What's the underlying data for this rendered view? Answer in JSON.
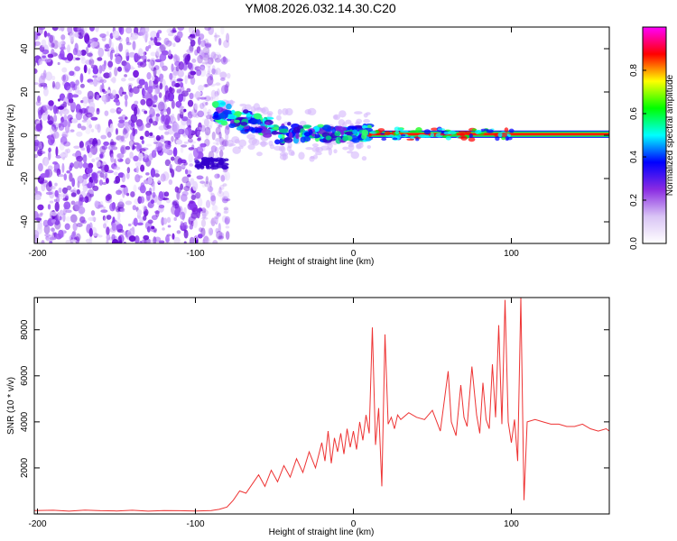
{
  "title": "YM08.2026.032.14.30.C20",
  "chart_data": [
    {
      "type": "heatmap",
      "name": "spectrogram",
      "xlabel": "Height of straight line (km)",
      "ylabel": "Frequency (Hz)",
      "xlim": [
        -202,
        162
      ],
      "ylim": [
        -50,
        50
      ],
      "x_ticks": [
        -200,
        -100,
        0,
        100
      ],
      "y_ticks": [
        -40,
        -20,
        0,
        20,
        40
      ],
      "noise_region_x": [
        -202,
        -85
      ],
      "transition_x": [
        -85,
        10
      ],
      "steady_line_x": [
        10,
        162
      ],
      "colorbar": {
        "label": "Normalized spectral amplitude",
        "range": [
          0,
          1
        ],
        "ticks": [
          0.0,
          0.2,
          0.4,
          0.6,
          0.8
        ],
        "tick_labels": [
          "0.0",
          "0.2",
          "0.4",
          "0.6",
          "0.8"
        ],
        "colors": [
          "#ffffff",
          "#d9c4f5",
          "#8a2be2",
          "#0000ff",
          "#00ffff",
          "#00ff00",
          "#ffff00",
          "#ff0000",
          "#ff00ff"
        ]
      }
    },
    {
      "type": "line",
      "name": "snr",
      "xlabel": "Height of straight line (km)",
      "ylabel": "SNR (10 * v/v)",
      "xlim": [
        -202,
        162
      ],
      "ylim": [
        0,
        9400
      ],
      "x_ticks": [
        -200,
        -100,
        0,
        100
      ],
      "y_ticks": [
        2000,
        4000,
        6000,
        8000
      ],
      "color": "#ee3333",
      "series": {
        "name": "SNR",
        "points": [
          [
            -202,
            150
          ],
          [
            -190,
            160
          ],
          [
            -180,
            120
          ],
          [
            -170,
            170
          ],
          [
            -160,
            140
          ],
          [
            -150,
            130
          ],
          [
            -140,
            160
          ],
          [
            -130,
            120
          ],
          [
            -120,
            150
          ],
          [
            -110,
            140
          ],
          [
            -100,
            130
          ],
          [
            -90,
            150
          ],
          [
            -85,
            200
          ],
          [
            -80,
            300
          ],
          [
            -76,
            600
          ],
          [
            -72,
            1000
          ],
          [
            -68,
            900
          ],
          [
            -64,
            1300
          ],
          [
            -60,
            1700
          ],
          [
            -56,
            1200
          ],
          [
            -52,
            1900
          ],
          [
            -48,
            1400
          ],
          [
            -44,
            2100
          ],
          [
            -40,
            1600
          ],
          [
            -36,
            2400
          ],
          [
            -32,
            1800
          ],
          [
            -28,
            2700
          ],
          [
            -24,
            2000
          ],
          [
            -20,
            3100
          ],
          [
            -18,
            2300
          ],
          [
            -16,
            3600
          ],
          [
            -14,
            2200
          ],
          [
            -12,
            3300
          ],
          [
            -10,
            2700
          ],
          [
            -8,
            3500
          ],
          [
            -6,
            2600
          ],
          [
            -4,
            3700
          ],
          [
            -2,
            2900
          ],
          [
            0,
            3600
          ],
          [
            2,
            2800
          ],
          [
            4,
            4000
          ],
          [
            6,
            3200
          ],
          [
            8,
            4300
          ],
          [
            10,
            3500
          ],
          [
            12,
            8100
          ],
          [
            14,
            3000
          ],
          [
            16,
            4600
          ],
          [
            18,
            1200
          ],
          [
            20,
            7800
          ],
          [
            22,
            3900
          ],
          [
            24,
            4200
          ],
          [
            26,
            3700
          ],
          [
            28,
            4300
          ],
          [
            30,
            4100
          ],
          [
            35,
            4400
          ],
          [
            40,
            4200
          ],
          [
            45,
            4100
          ],
          [
            50,
            4500
          ],
          [
            55,
            3600
          ],
          [
            60,
            6200
          ],
          [
            62,
            4000
          ],
          [
            65,
            3400
          ],
          [
            68,
            5600
          ],
          [
            70,
            4200
          ],
          [
            72,
            3800
          ],
          [
            75,
            6400
          ],
          [
            78,
            4300
          ],
          [
            80,
            3500
          ],
          [
            82,
            5700
          ],
          [
            84,
            4100
          ],
          [
            86,
            3700
          ],
          [
            88,
            6500
          ],
          [
            90,
            4200
          ],
          [
            92,
            8200
          ],
          [
            94,
            3900
          ],
          [
            96,
            9300
          ],
          [
            98,
            4000
          ],
          [
            100,
            3100
          ],
          [
            102,
            4100
          ],
          [
            104,
            2300
          ],
          [
            106,
            9400
          ],
          [
            108,
            600
          ],
          [
            110,
            4000
          ],
          [
            115,
            4100
          ],
          [
            120,
            4000
          ],
          [
            125,
            3900
          ],
          [
            130,
            3900
          ],
          [
            135,
            3800
          ],
          [
            140,
            3800
          ],
          [
            145,
            3900
          ],
          [
            150,
            3700
          ],
          [
            155,
            3600
          ],
          [
            160,
            3700
          ],
          [
            162,
            3600
          ]
        ]
      }
    }
  ]
}
